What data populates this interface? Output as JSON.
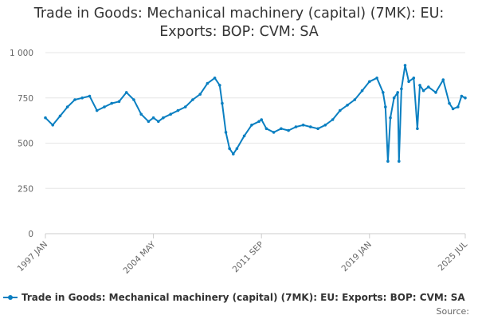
{
  "chart_data": {
    "type": "line",
    "title_lines": [
      "Trade in Goods: Mechanical machinery (capital) (7MK): EU:",
      "Exports: BOP: CVM: SA"
    ],
    "xlabel": "",
    "ylabel": "",
    "ylim": [
      0,
      1000
    ],
    "yticks": [
      {
        "value": 0,
        "label": "0"
      },
      {
        "value": 250,
        "label": "250"
      },
      {
        "value": 500,
        "label": "500"
      },
      {
        "value": 750,
        "label": "750"
      },
      {
        "value": 1000,
        "label": "1 000"
      }
    ],
    "xlim": [
      "1997-01",
      "2025-07"
    ],
    "xticks": [
      {
        "value": "1997-01",
        "label": "1997 JAN"
      },
      {
        "value": "2004-05",
        "label": "2004 MAY"
      },
      {
        "value": "2011-09",
        "label": "2011 SEP"
      },
      {
        "value": "2019-01",
        "label": "2019 JAN"
      },
      {
        "value": "2025-07",
        "label": "2025 JUL"
      }
    ],
    "grid": true,
    "legend_position": "bottom",
    "series": [
      {
        "name": "Trade in Goods: Mechanical machinery (capital) (7MK): EU: Exports: BOP: CVM: SA",
        "color": "#0a7fc1",
        "points": [
          [
            "1997-01",
            640
          ],
          [
            "1997-07",
            600
          ],
          [
            "1998-01",
            650
          ],
          [
            "1998-07",
            700
          ],
          [
            "1999-01",
            740
          ],
          [
            "1999-07",
            750
          ],
          [
            "2000-01",
            760
          ],
          [
            "2000-07",
            680
          ],
          [
            "2001-01",
            700
          ],
          [
            "2001-07",
            720
          ],
          [
            "2002-01",
            730
          ],
          [
            "2002-07",
            780
          ],
          [
            "2003-01",
            740
          ],
          [
            "2003-07",
            660
          ],
          [
            "2004-01",
            620
          ],
          [
            "2004-05",
            640
          ],
          [
            "2004-09",
            620
          ],
          [
            "2005-01",
            640
          ],
          [
            "2005-07",
            660
          ],
          [
            "2006-01",
            680
          ],
          [
            "2006-07",
            700
          ],
          [
            "2007-01",
            740
          ],
          [
            "2007-07",
            770
          ],
          [
            "2008-01",
            830
          ],
          [
            "2008-07",
            860
          ],
          [
            "2008-11",
            820
          ],
          [
            "2009-01",
            720
          ],
          [
            "2009-04",
            560
          ],
          [
            "2009-07",
            470
          ],
          [
            "2009-10",
            440
          ],
          [
            "2010-01",
            470
          ],
          [
            "2010-07",
            540
          ],
          [
            "2011-01",
            600
          ],
          [
            "2011-07",
            620
          ],
          [
            "2011-09",
            630
          ],
          [
            "2012-01",
            580
          ],
          [
            "2012-07",
            560
          ],
          [
            "2013-01",
            580
          ],
          [
            "2013-07",
            570
          ],
          [
            "2014-01",
            590
          ],
          [
            "2014-07",
            600
          ],
          [
            "2015-01",
            590
          ],
          [
            "2015-07",
            580
          ],
          [
            "2016-01",
            600
          ],
          [
            "2016-07",
            630
          ],
          [
            "2017-01",
            680
          ],
          [
            "2017-07",
            710
          ],
          [
            "2018-01",
            740
          ],
          [
            "2018-07",
            790
          ],
          [
            "2019-01",
            840
          ],
          [
            "2019-07",
            860
          ],
          [
            "2019-12",
            780
          ],
          [
            "2020-02",
            700
          ],
          [
            "2020-04",
            400
          ],
          [
            "2020-06",
            640
          ],
          [
            "2020-09",
            750
          ],
          [
            "2020-12",
            780
          ],
          [
            "2021-01",
            400
          ],
          [
            "2021-03",
            800
          ],
          [
            "2021-06",
            930
          ],
          [
            "2021-09",
            840
          ],
          [
            "2022-01",
            860
          ],
          [
            "2022-04",
            580
          ],
          [
            "2022-06",
            820
          ],
          [
            "2022-09",
            790
          ],
          [
            "2023-01",
            810
          ],
          [
            "2023-07",
            780
          ],
          [
            "2024-01",
            850
          ],
          [
            "2024-06",
            720
          ],
          [
            "2024-09",
            690
          ],
          [
            "2025-01",
            700
          ],
          [
            "2025-04",
            760
          ],
          [
            "2025-07",
            750
          ]
        ]
      }
    ],
    "source_label": "Source:"
  }
}
